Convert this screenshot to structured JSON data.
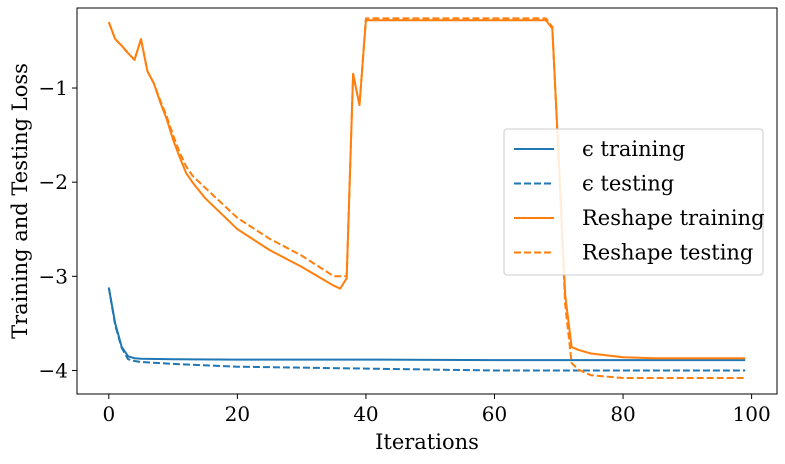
{
  "chart_data": {
    "type": "line",
    "xlabel": "Iterations",
    "ylabel": "Training and Testing Loss",
    "xlim": [
      -4.95,
      103.95
    ],
    "ylim": [
      -4.25,
      -0.15
    ],
    "xticks": [
      0,
      20,
      40,
      60,
      80,
      100
    ],
    "yticks": [
      -4,
      -3,
      -2,
      -1
    ],
    "xtick_labels": [
      "0",
      "20",
      "40",
      "60",
      "80",
      "100"
    ],
    "ytick_labels": [
      "−4",
      "−3",
      "−2",
      "−1"
    ],
    "grid": false,
    "legend_position": "center-right",
    "series": [
      {
        "name": "ϵ training",
        "color": "#1f77b4",
        "dash": "solid",
        "x": [
          0,
          1,
          2,
          3,
          4,
          5,
          10,
          20,
          40,
          60,
          80,
          99
        ],
        "y": [
          -3.12,
          -3.5,
          -3.75,
          -3.85,
          -3.87,
          -3.875,
          -3.88,
          -3.885,
          -3.885,
          -3.89,
          -3.89,
          -3.89
        ]
      },
      {
        "name": "ϵ testing",
        "color": "#1f77b4",
        "dash": "dashed",
        "x": [
          0,
          1,
          2,
          3,
          4,
          5,
          10,
          20,
          40,
          60,
          80,
          99
        ],
        "y": [
          -3.12,
          -3.52,
          -3.76,
          -3.88,
          -3.9,
          -3.91,
          -3.93,
          -3.96,
          -3.98,
          -4.0,
          -4.0,
          -4.0
        ]
      },
      {
        "name": "Reshape training",
        "color": "#ff7f0e",
        "dash": "solid",
        "x": [
          0,
          1,
          2,
          3,
          4,
          5,
          6,
          7,
          8,
          9,
          10,
          11,
          12,
          13,
          15,
          20,
          25,
          30,
          35,
          36,
          37,
          38,
          39,
          40,
          45,
          50,
          55,
          60,
          65,
          68,
          69,
          70,
          71,
          72,
          73,
          75,
          80,
          85,
          90,
          99
        ],
        "y": [
          -0.3,
          -0.48,
          -0.55,
          -0.63,
          -0.7,
          -0.48,
          -0.82,
          -0.95,
          -1.15,
          -1.33,
          -1.55,
          -1.73,
          -1.9,
          -2.0,
          -2.17,
          -2.5,
          -2.72,
          -2.9,
          -3.1,
          -3.13,
          -3.02,
          -0.85,
          -1.18,
          -0.28,
          -0.28,
          -0.28,
          -0.28,
          -0.28,
          -0.28,
          -0.28,
          -0.37,
          -1.75,
          -3.2,
          -3.75,
          -3.78,
          -3.82,
          -3.86,
          -3.87,
          -3.87,
          -3.87
        ]
      },
      {
        "name": "Reshape testing",
        "color": "#ff7f0e",
        "dash": "dashed",
        "x": [
          0,
          1,
          2,
          3,
          4,
          5,
          6,
          7,
          8,
          9,
          10,
          11,
          12,
          13,
          15,
          20,
          25,
          30,
          35,
          36,
          37,
          38,
          39,
          40,
          45,
          50,
          55,
          60,
          65,
          68,
          69,
          70,
          71,
          72,
          73,
          75,
          80,
          85,
          90,
          99
        ],
        "y": [
          -0.3,
          -0.48,
          -0.55,
          -0.63,
          -0.7,
          -0.48,
          -0.82,
          -0.95,
          -1.13,
          -1.3,
          -1.5,
          -1.68,
          -1.83,
          -1.93,
          -2.06,
          -2.38,
          -2.6,
          -2.78,
          -3.0,
          -3.0,
          -3.0,
          -0.85,
          -1.18,
          -0.26,
          -0.26,
          -0.26,
          -0.26,
          -0.26,
          -0.26,
          -0.26,
          -0.35,
          -1.8,
          -3.3,
          -3.92,
          -3.99,
          -4.05,
          -4.08,
          -4.08,
          -4.08,
          -4.08
        ]
      }
    ]
  }
}
